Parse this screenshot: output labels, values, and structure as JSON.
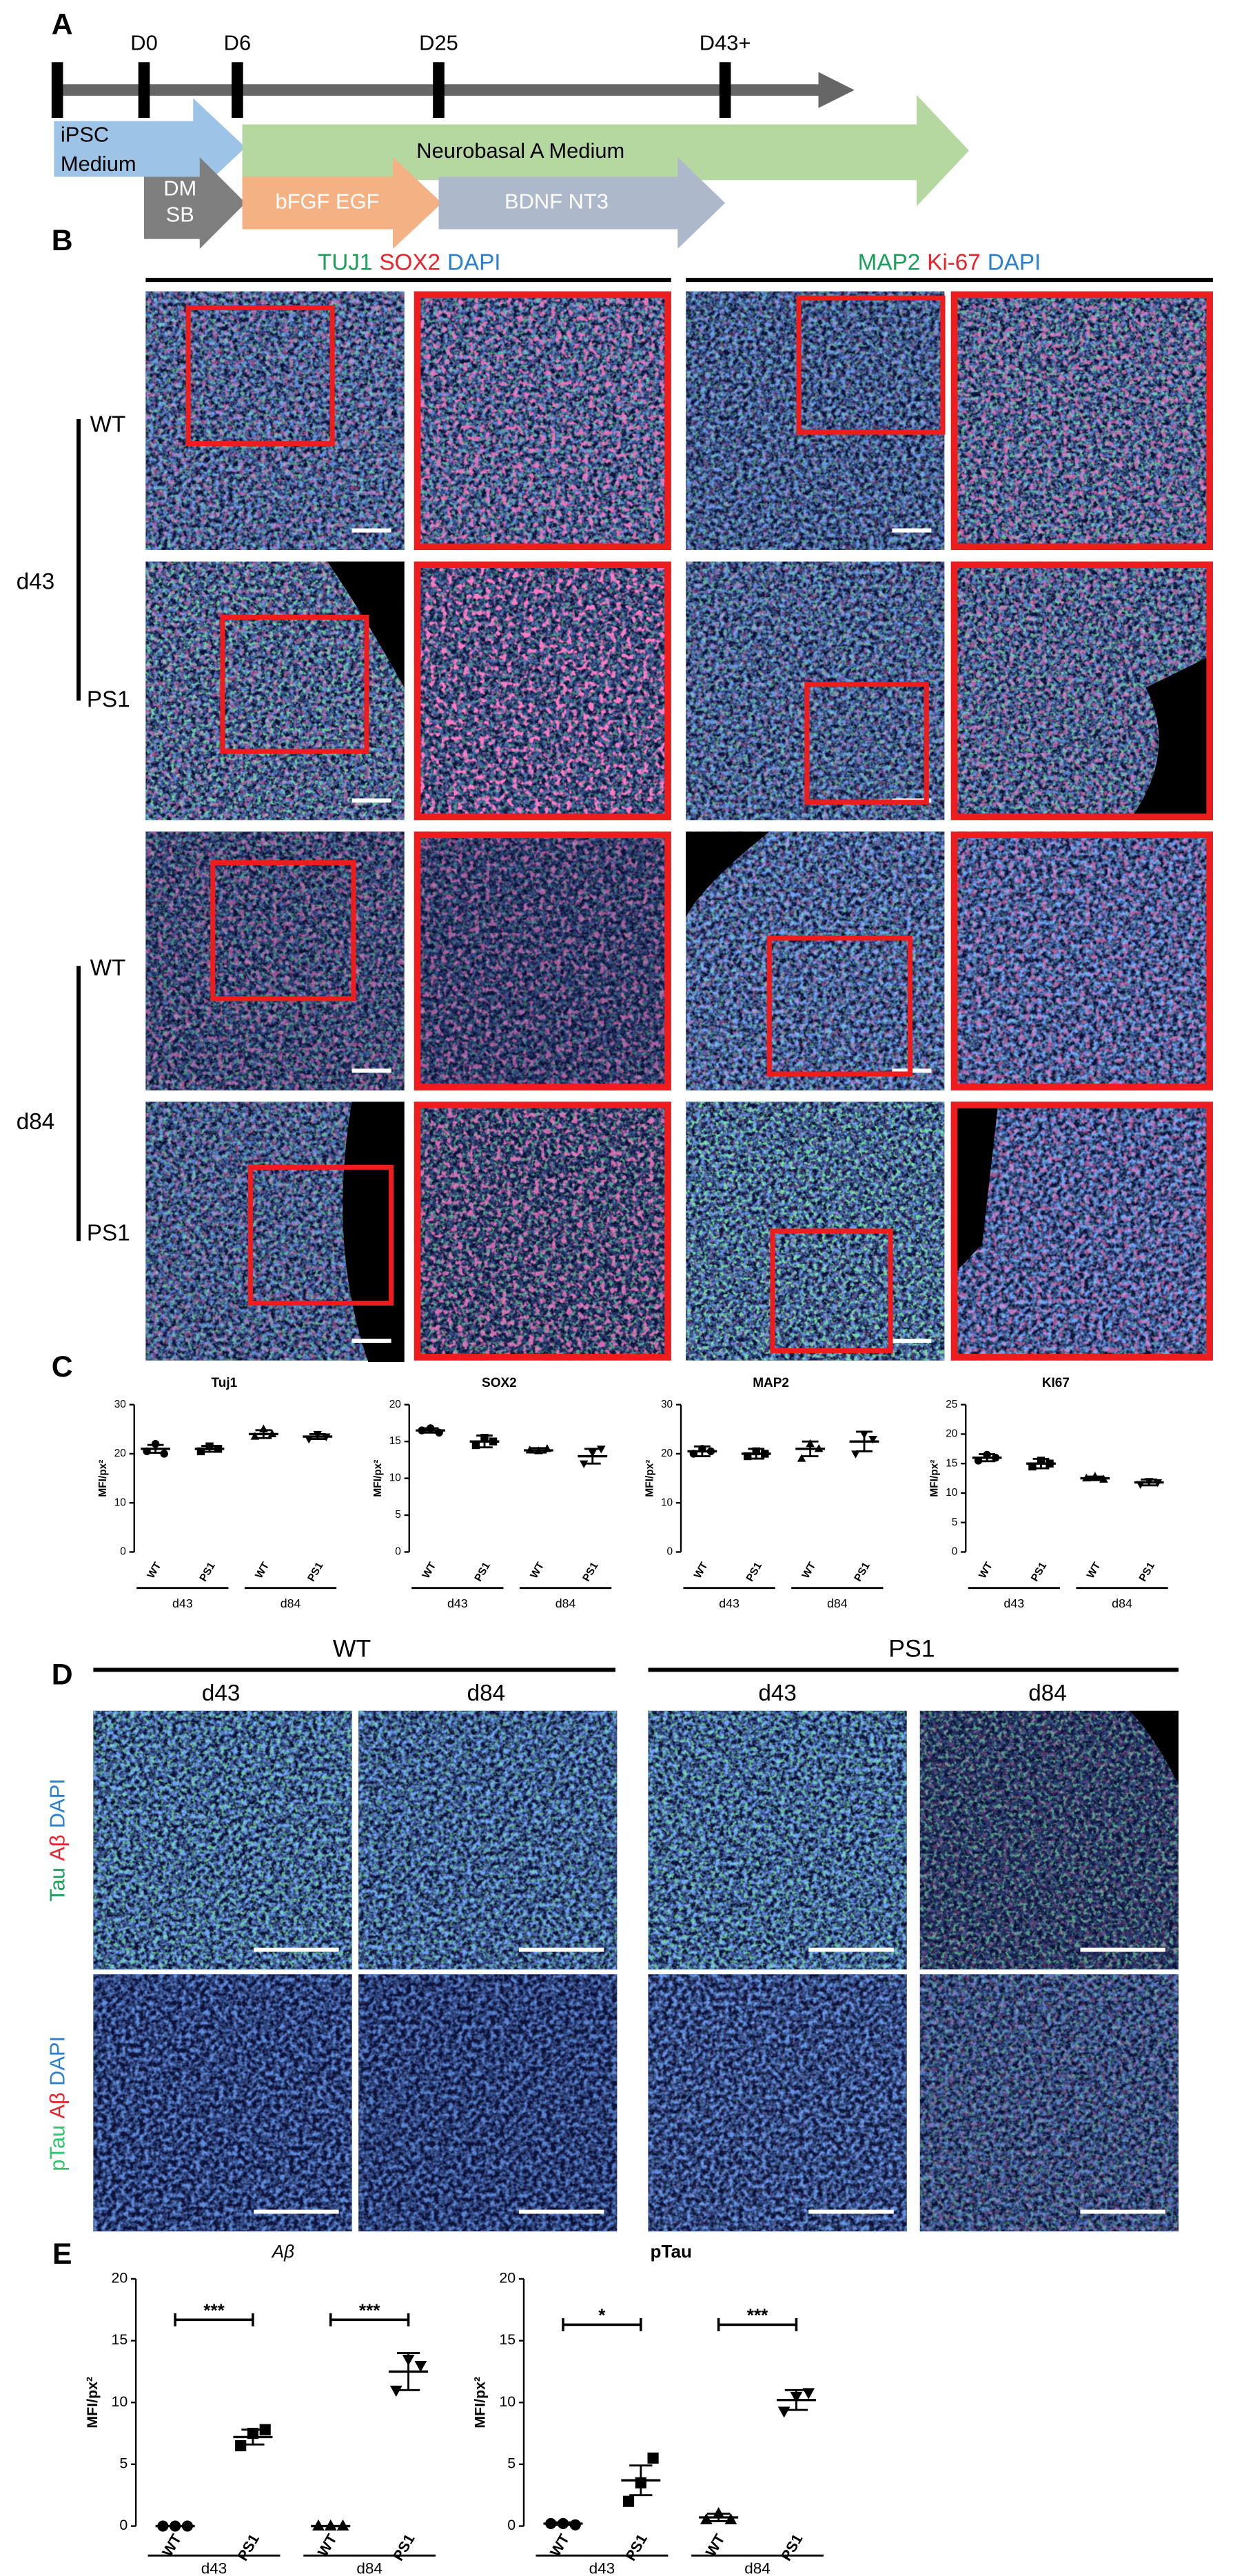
{
  "panel_labels": [
    "A",
    "B",
    "C",
    "D",
    "E"
  ],
  "timeline": {
    "days": [
      "D0",
      "D6",
      "D25",
      "D43+"
    ],
    "stages": [
      {
        "label_lines": [
          "iPSC",
          "Medium"
        ],
        "color": "#9dc3e6",
        "text_color": "#000000"
      },
      {
        "label_lines": [
          "Neurobasal A Medium"
        ],
        "color": "#b5d7a0",
        "text_color": "#000000"
      },
      {
        "label_lines": [
          "DM",
          "SB"
        ],
        "color": "#7f7f7f",
        "text_color": "#ffffff"
      },
      {
        "label_lines": [
          "bFGF EGF"
        ],
        "color": "#f4b183",
        "text_color": "#ffffff"
      },
      {
        "label_lines": [
          "BDNF NT3"
        ],
        "color": "#adb9ca",
        "text_color": "#ffffff"
      }
    ]
  },
  "imaging_b": {
    "columns": [
      {
        "parts": [
          {
            "text": "TUJ1",
            "color": "#1aa05a"
          },
          {
            "text": "SOX2",
            "color": "#e8232b"
          },
          {
            "text": "DAPI",
            "color": "#2a7fd1"
          }
        ]
      },
      {
        "parts": [
          {
            "text": "MAP2",
            "color": "#1aa05a"
          },
          {
            "text": "Ki-67",
            "color": "#e8232b"
          },
          {
            "text": "DAPI",
            "color": "#2a7fd1"
          }
        ]
      }
    ],
    "row_labels": [
      "WT",
      "PS1",
      "WT",
      "PS1"
    ],
    "groups": [
      "d43",
      "d84"
    ]
  },
  "imaging_d": {
    "genotypes": [
      "WT",
      "PS1"
    ],
    "timepoints": [
      "d43",
      "d84",
      "d43",
      "d84"
    ],
    "rows": [
      {
        "parts": [
          {
            "text": "Tau",
            "color": "#1aa05a"
          },
          {
            "text": "Aβ",
            "color": "#e8232b"
          },
          {
            "text": "DAPI",
            "color": "#2a7fd1"
          }
        ]
      },
      {
        "parts": [
          {
            "text": "pTau",
            "color": "#2ec46a"
          },
          {
            "text": "Aβ",
            "color": "#e8232b"
          },
          {
            "text": "DAPI",
            "color": "#2a7fd1"
          }
        ]
      }
    ]
  },
  "chart_data": [
    {
      "type": "dot",
      "title": "Tuj1",
      "title_style": "bold",
      "y_label": "MFI/px²",
      "color": "#000000",
      "categories": [
        "WT",
        "PS1",
        "WT",
        "PS1"
      ],
      "groups": [
        "d43",
        "d84"
      ],
      "markers": [
        "circle",
        "square",
        "triangle",
        "triangle-down"
      ],
      "values": [
        21,
        21,
        24,
        23.5
      ],
      "errors": [
        0.8,
        0.6,
        0.8,
        0.5
      ],
      "points": [
        [
          20.5,
          22,
          20
        ],
        [
          20.5,
          21.5,
          21
        ],
        [
          23.5,
          25,
          24
        ],
        [
          23,
          24,
          23.5
        ]
      ],
      "ylim": [
        0,
        30
      ],
      "yticks": [
        0,
        10,
        20,
        30
      ]
    },
    {
      "type": "dot",
      "title": "SOX2",
      "title_style": "bold",
      "y_label": "MFI/px²",
      "color": "#000000",
      "categories": [
        "WT",
        "PS1",
        "WT",
        "PS1"
      ],
      "groups": [
        "d43",
        "d84"
      ],
      "markers": [
        "circle",
        "square",
        "triangle",
        "triangle-down"
      ],
      "values": [
        16.5,
        15,
        13.8,
        13
      ],
      "errors": [
        0.3,
        0.8,
        0.3,
        1
      ],
      "points": [
        [
          16.5,
          16.8,
          16.2
        ],
        [
          14.5,
          15.5,
          15
        ],
        [
          13.8,
          13.7,
          14
        ],
        [
          12,
          13.5,
          14
        ]
      ],
      "ylim": [
        0,
        20
      ],
      "yticks": [
        0,
        5,
        10,
        15,
        20
      ]
    },
    {
      "type": "dot",
      "title": "MAP2",
      "title_style": "bold",
      "y_label": "MFI/px²",
      "color": "#000000",
      "categories": [
        "WT",
        "PS1",
        "WT",
        "PS1"
      ],
      "groups": [
        "d43",
        "d84"
      ],
      "markers": [
        "circle",
        "square",
        "triangle",
        "triangle-down"
      ],
      "values": [
        20.5,
        20,
        21,
        22.5
      ],
      "errors": [
        1,
        1,
        1.5,
        2
      ],
      "points": [
        [
          20,
          21,
          20.5
        ],
        [
          19.5,
          20.5,
          20
        ],
        [
          19,
          22,
          21
        ],
        [
          20,
          24,
          23
        ]
      ],
      "ylim": [
        0,
        30
      ],
      "yticks": [
        0,
        10,
        20,
        30
      ]
    },
    {
      "type": "dot",
      "title": "KI67",
      "title_style": "bold",
      "y_label": "MFI/px²",
      "color": "#000000",
      "categories": [
        "WT",
        "PS1",
        "WT",
        "PS1"
      ],
      "groups": [
        "d43",
        "d84"
      ],
      "markers": [
        "circle",
        "square",
        "triangle",
        "triangle-down"
      ],
      "values": [
        16,
        15,
        12.5,
        11.8
      ],
      "errors": [
        0.6,
        0.8,
        0.3,
        0.5
      ],
      "points": [
        [
          15.5,
          16.5,
          16
        ],
        [
          14.5,
          15.5,
          15
        ],
        [
          12.5,
          12.8,
          12.3
        ],
        [
          11.5,
          12,
          11.8
        ]
      ],
      "ylim": [
        0,
        25
      ],
      "yticks": [
        0,
        5,
        10,
        15,
        20,
        25
      ]
    },
    {
      "type": "dot",
      "title": "Aβ",
      "title_style": "italic",
      "y_label": "MFI/px²",
      "color": "#000000",
      "categories": [
        "WT",
        "PS1",
        "WT",
        "PS1"
      ],
      "groups": [
        "d43",
        "d84"
      ],
      "markers": [
        "circle",
        "square",
        "triangle",
        "triangle-down"
      ],
      "values": [
        0,
        7.2,
        0,
        12.5
      ],
      "errors": [
        0,
        0.6,
        0,
        1.5
      ],
      "points": [
        [
          0,
          0,
          0
        ],
        [
          6.5,
          7.5,
          7.8
        ],
        [
          0,
          0,
          0
        ],
        [
          11,
          13.5,
          13
        ]
      ],
      "significance": [
        "***",
        "***"
      ],
      "ylim": [
        0,
        20
      ],
      "yticks": [
        0,
        5,
        10,
        15,
        20
      ]
    },
    {
      "type": "dot",
      "title": "pTau",
      "title_style": "bold",
      "y_label": "MFI/px²",
      "color": "#000000",
      "categories": [
        "WT",
        "PS1",
        "WT",
        "PS1"
      ],
      "groups": [
        "d43",
        "d84"
      ],
      "markers": [
        "circle",
        "square",
        "triangle",
        "triangle-down"
      ],
      "values": [
        0.2,
        3.7,
        0.7,
        10.2
      ],
      "errors": [
        0.1,
        1.2,
        0.3,
        0.8
      ],
      "points": [
        [
          0.2,
          0.2,
          0.1
        ],
        [
          2,
          3.5,
          5.5
        ],
        [
          0.5,
          1,
          0.5
        ],
        [
          9.3,
          10.5,
          10.8
        ]
      ],
      "significance": [
        "*",
        "***"
      ],
      "ylim": [
        0,
        20
      ],
      "yticks": [
        0,
        5,
        10,
        15,
        20
      ]
    }
  ]
}
